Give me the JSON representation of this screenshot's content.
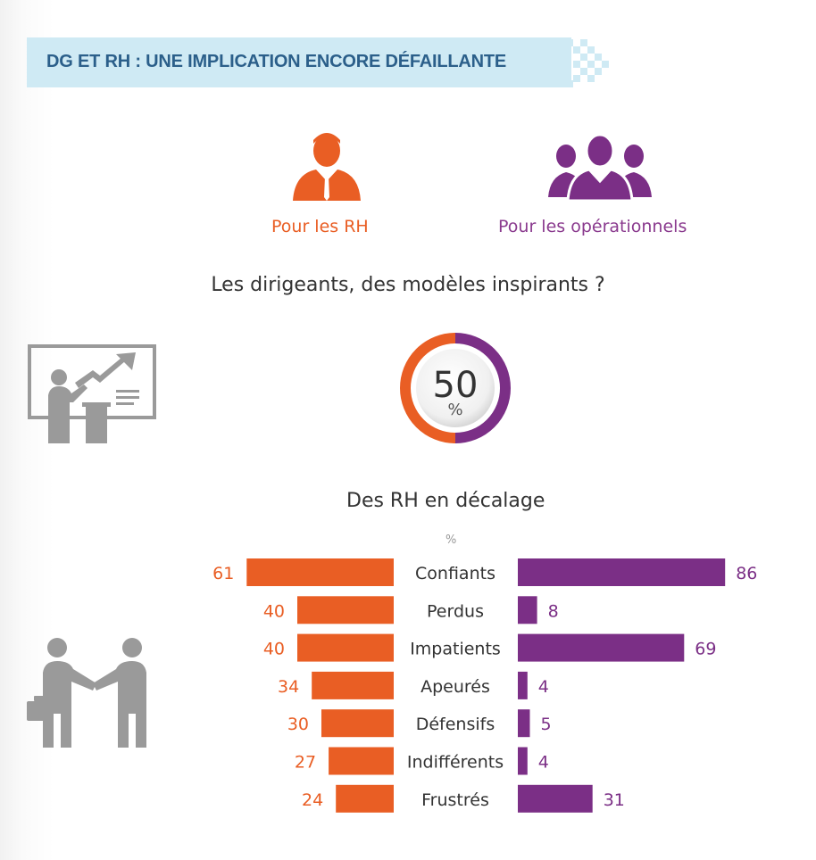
{
  "banner": {
    "title": "DG ET RH : UNE IMPLICATION ENCORE DÉFAILLANTE"
  },
  "audiences": {
    "hr": "Pour les RH",
    "operational": "Pour les opérationnels"
  },
  "question1": "Les dirigeants, des modèles inspirants ?",
  "donut": {
    "value": "50",
    "unit": "%"
  },
  "question2": "Des RH en décalage",
  "colors": {
    "hr": "#e95e24",
    "ops": "#7b2f86",
    "icon_gray": "#9a9a9a",
    "banner": "#cfeaf4"
  },
  "icons": [
    "businessman-icon",
    "group-icon",
    "presentation-icon",
    "handshake-icon"
  ],
  "chart_data": {
    "type": "bar",
    "unit_label": "%",
    "categories": [
      "Confiants",
      "Perdus",
      "Impatients",
      "Apeurés",
      "Défensifs",
      "Indifférents",
      "Frustrés"
    ],
    "series": [
      {
        "name": "Pour les RH",
        "values": [
          61,
          40,
          40,
          34,
          30,
          27,
          24
        ]
      },
      {
        "name": "Pour les opérationnels",
        "values": [
          86,
          8,
          69,
          4,
          5,
          4,
          31
        ]
      }
    ]
  }
}
